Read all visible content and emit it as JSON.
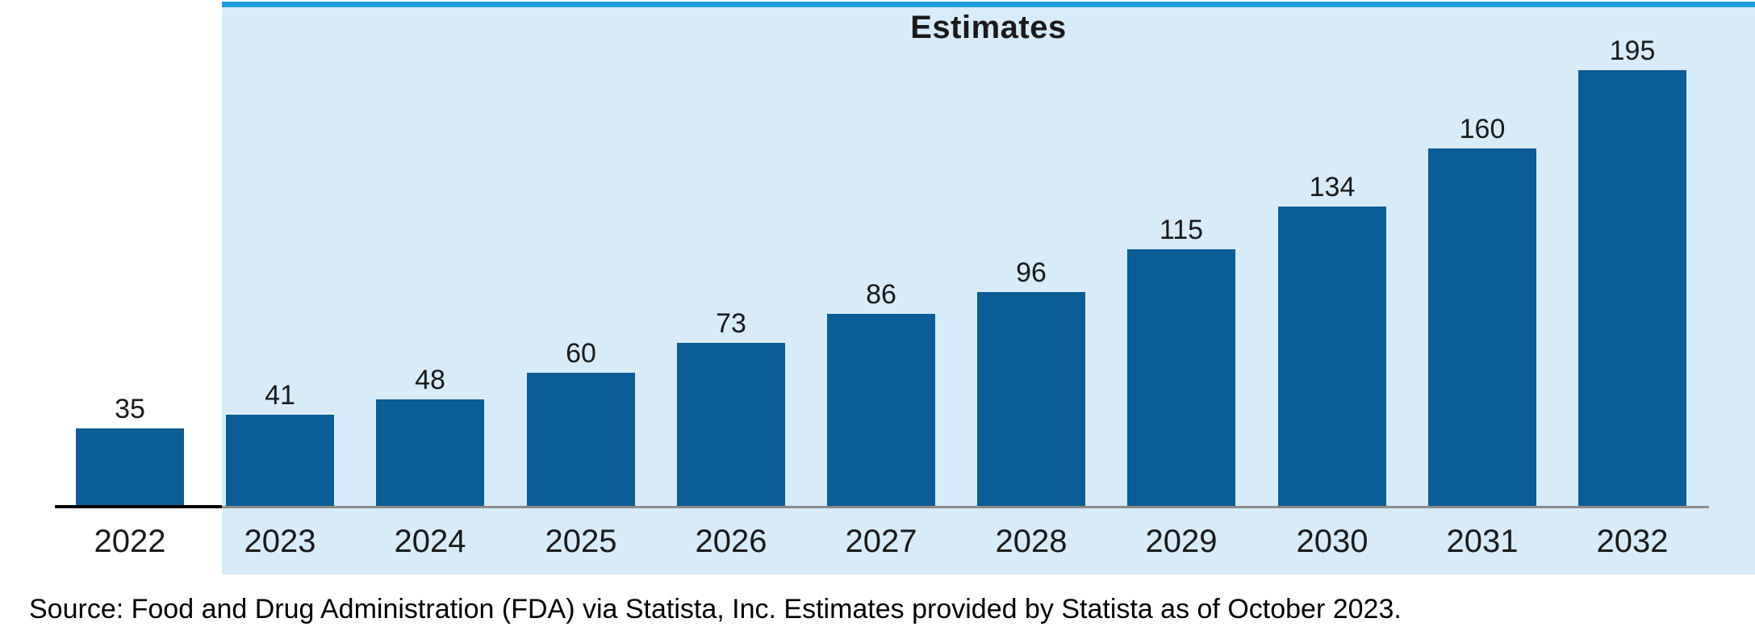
{
  "chart": {
    "region_label": "Estimates",
    "source_note": "Source: Food and Drug Administration (FDA) via Statista, Inc. Estimates provided by Statista as of October 2023."
  },
  "chart_data": {
    "type": "bar",
    "categories": [
      "2022",
      "2023",
      "2024",
      "2025",
      "2026",
      "2027",
      "2028",
      "2029",
      "2030",
      "2031",
      "2032"
    ],
    "values": [
      35,
      41,
      48,
      60,
      73,
      86,
      96,
      115,
      134,
      160,
      195
    ],
    "title": "Estimates",
    "xlabel": "",
    "ylabel": "",
    "ylim": [
      0,
      210
    ],
    "grid": false,
    "legend_position": "none",
    "value_labels_shown": true,
    "actual_categories": [
      "2022"
    ],
    "estimate_categories_from": "2023",
    "estimate_categories_to": "2032",
    "annotation": "Shaded light-blue band with top stripe marks estimate years 2023-2032"
  },
  "colors": {
    "bar": "#0a5d96",
    "region_bg": "#d7ebf8",
    "region_top_stripe": "#209cd8",
    "axis_actual": "#000000",
    "axis_estimate": "#8c8c8c",
    "label_text": "#1a1a1a",
    "source_text": "#000000"
  }
}
